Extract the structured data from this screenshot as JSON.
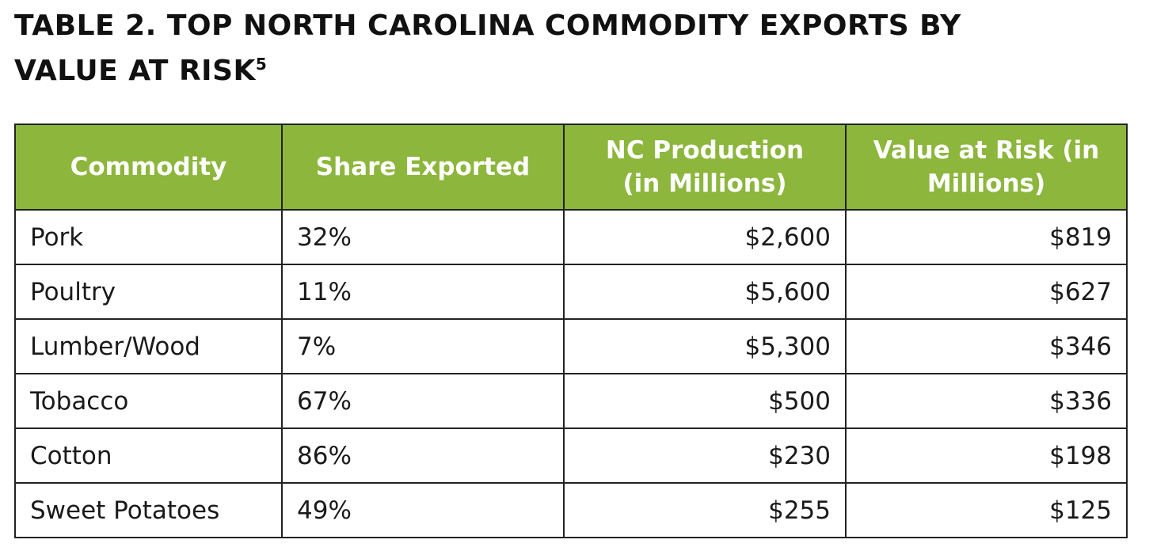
{
  "title": {
    "text": "TABLE 2. TOP NORTH CAROLINA COMMODITY EXPORTS BY VALUE AT RISK",
    "footnote": "5"
  },
  "table": {
    "header": [
      "Commodity",
      "Share Exported",
      "NC Production (in Millions)",
      "Value at Risk (in Millions)"
    ],
    "rows": [
      [
        "Pork",
        "32%",
        "$2,600",
        "$819"
      ],
      [
        "Poultry",
        "11%",
        "$5,600",
        "$627"
      ],
      [
        "Lumber/Wood",
        "7%",
        "$5,300",
        "$346"
      ],
      [
        "Tobacco",
        "67%",
        "$500",
        "$336"
      ],
      [
        "Cotton",
        "86%",
        "$230",
        "$198"
      ],
      [
        "Sweet Potatoes",
        "49%",
        "$255",
        "$125"
      ]
    ]
  }
}
